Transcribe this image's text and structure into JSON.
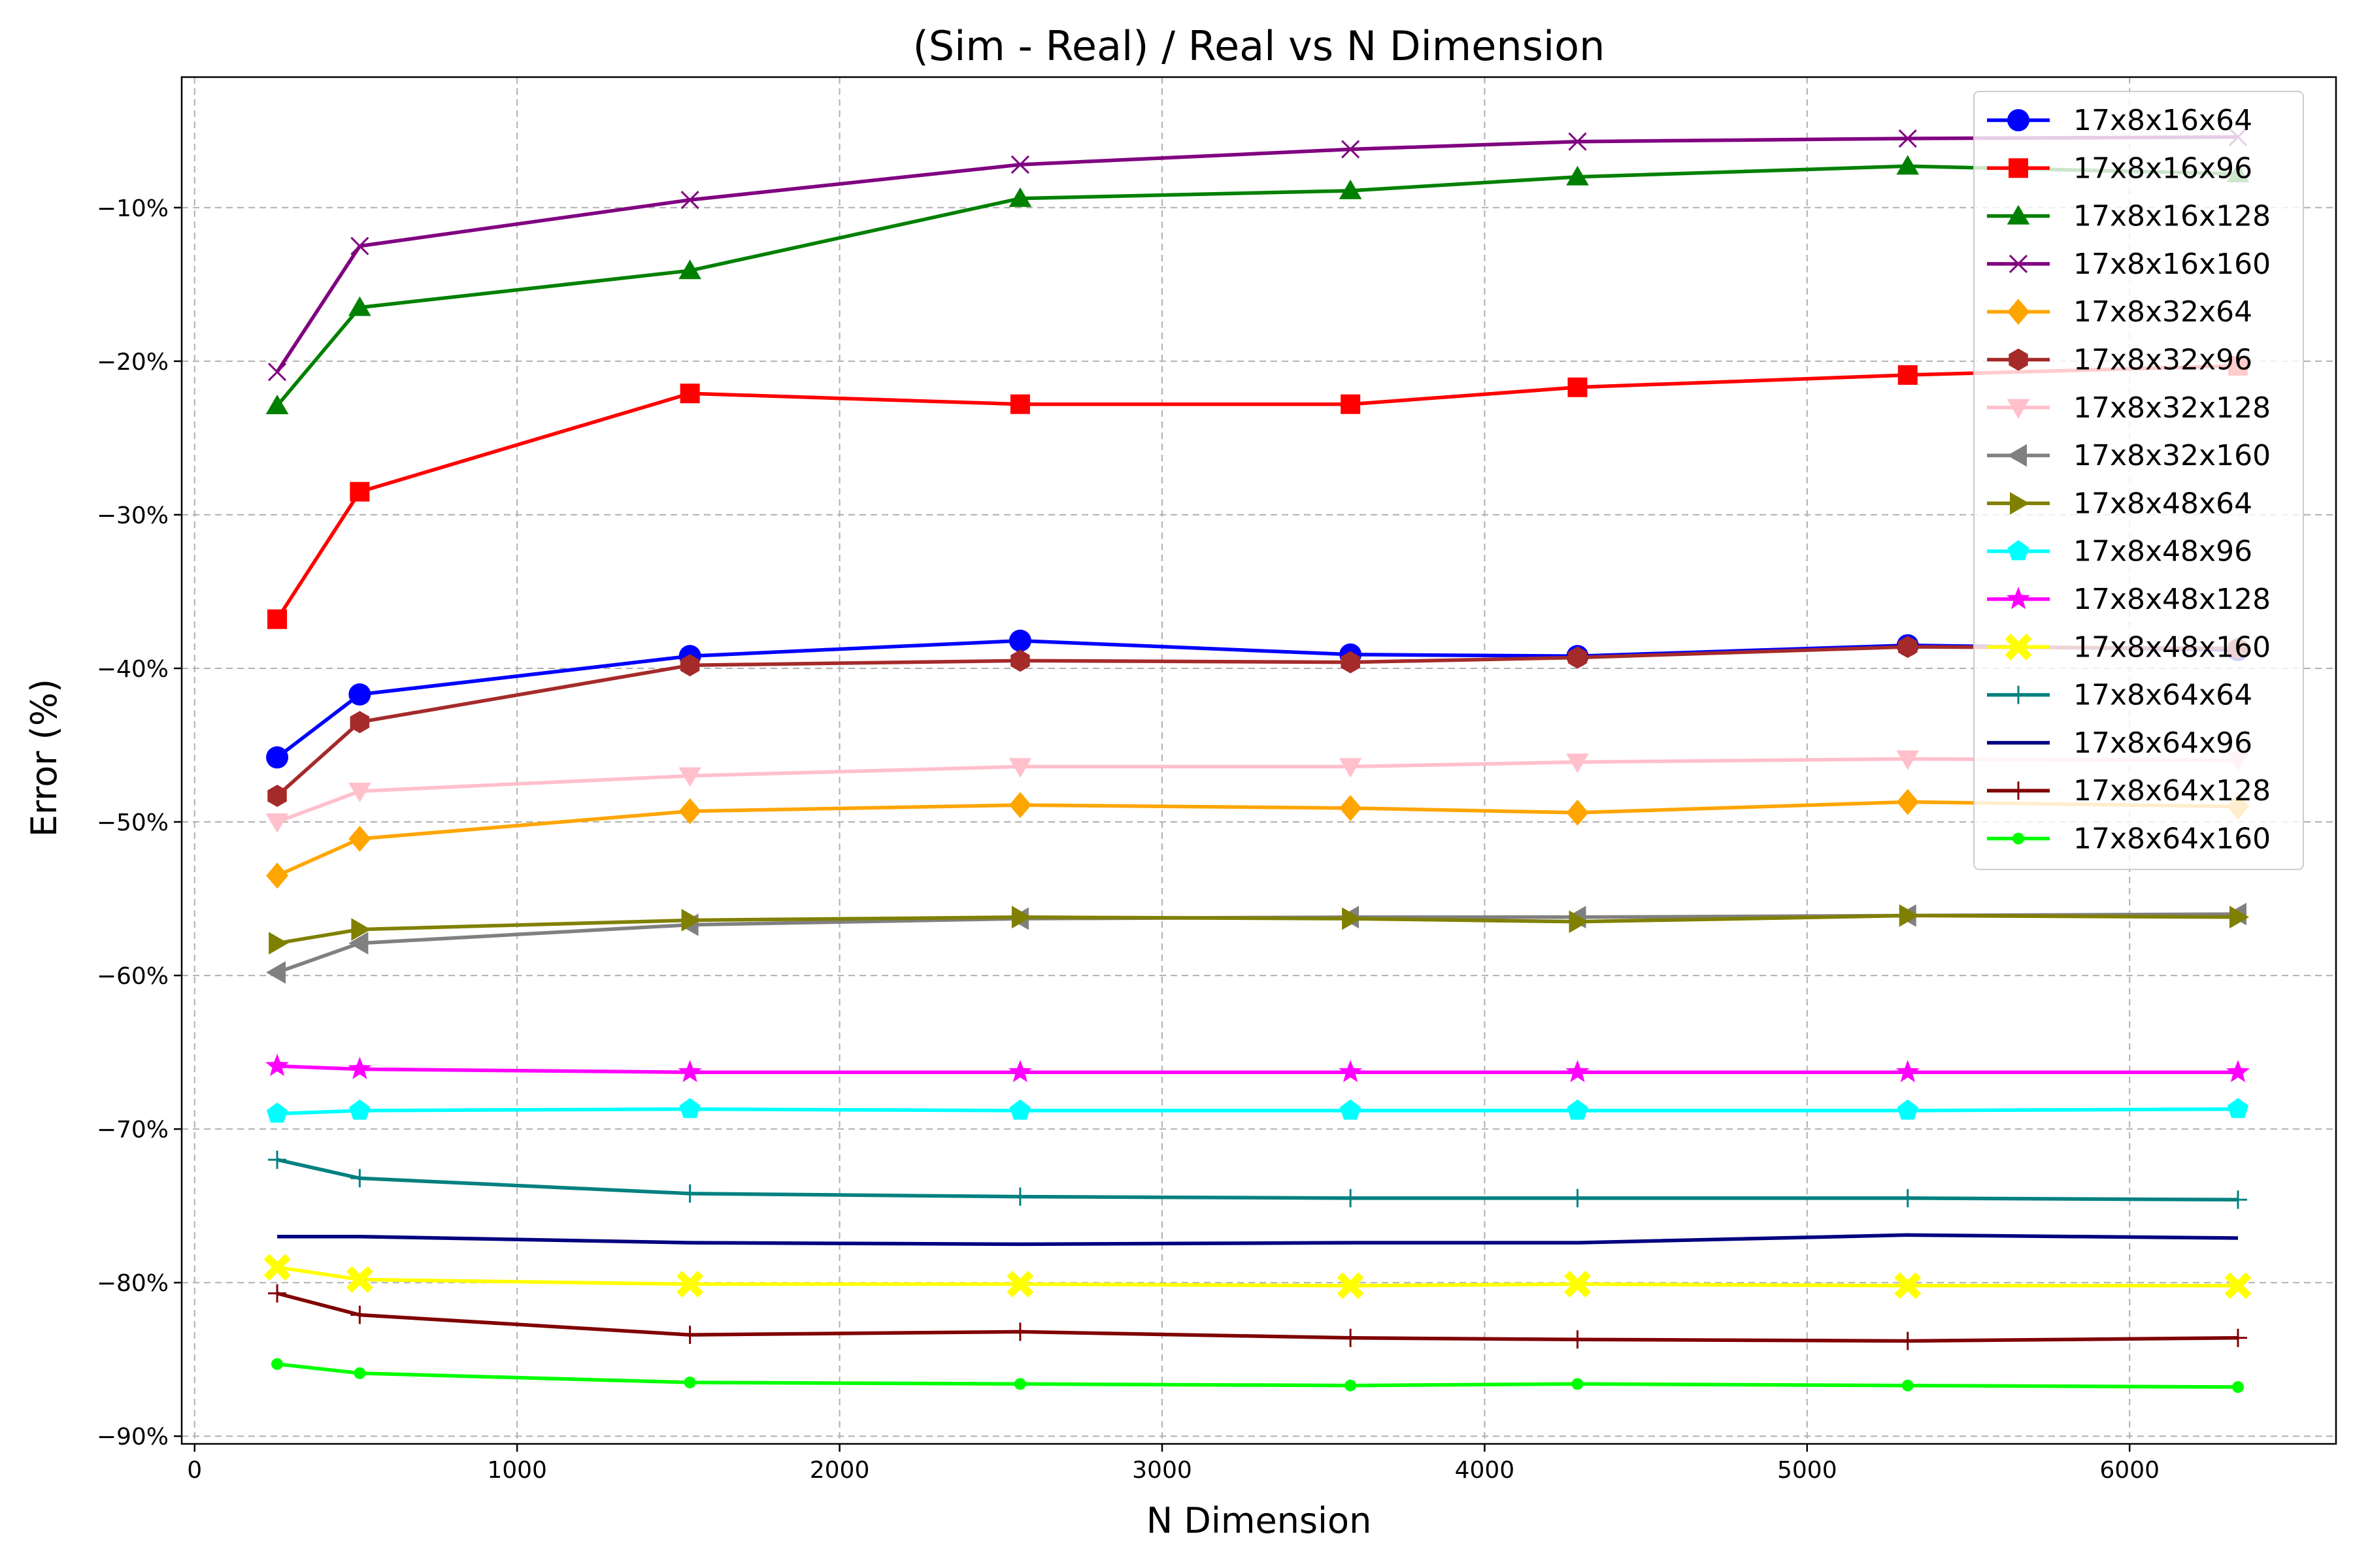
{
  "chart_data": {
    "type": "line",
    "title": "(Sim - Real) / Real vs N Dimension",
    "xlabel": "N Dimension",
    "ylabel": "Error (%)",
    "xlim": [
      -40,
      6640
    ],
    "ylim": [
      -90.5,
      -1.5
    ],
    "xticks": [
      0,
      1000,
      2000,
      3000,
      4000,
      5000,
      6000
    ],
    "yticks": [
      -90,
      -80,
      -70,
      -60,
      -50,
      -40,
      -30,
      -20,
      -10
    ],
    "ytick_labels": [
      "−90%",
      "−80%",
      "−70%",
      "−60%",
      "−50%",
      "−40%",
      "−30%",
      "−20%",
      "−10%"
    ],
    "grid": true,
    "legend_position": "top-right",
    "x": [
      256,
      512,
      1536,
      2560,
      3584,
      4288,
      5312,
      6336
    ],
    "series": [
      {
        "name": "17x8x16x64",
        "color": "#0000ff",
        "marker": "circle",
        "values": [
          -45.8,
          -41.7,
          -39.2,
          -38.2,
          -39.1,
          -39.2,
          -38.5,
          -38.8
        ]
      },
      {
        "name": "17x8x16x96",
        "color": "#ff0000",
        "marker": "square",
        "values": [
          -36.8,
          -28.5,
          -22.1,
          -22.8,
          -22.8,
          -21.7,
          -20.9,
          -20.3
        ]
      },
      {
        "name": "17x8x16x128",
        "color": "#008000",
        "marker": "triangle-up",
        "values": [
          -22.9,
          -16.5,
          -14.1,
          -9.4,
          -8.9,
          -8.0,
          -7.3,
          -7.8
        ]
      },
      {
        "name": "17x8x16x160",
        "color": "#800080",
        "marker": "x",
        "values": [
          -20.7,
          -12.5,
          -9.5,
          -7.2,
          -6.2,
          -5.7,
          -5.5,
          -5.4
        ]
      },
      {
        "name": "17x8x32x64",
        "color": "#ffa500",
        "marker": "diamond",
        "values": [
          -53.5,
          -51.1,
          -49.3,
          -48.9,
          -49.1,
          -49.4,
          -48.7,
          -49.0
        ]
      },
      {
        "name": "17x8x32x96",
        "color": "#a52a2a",
        "marker": "hexagon",
        "values": [
          -48.3,
          -43.5,
          -39.8,
          -39.5,
          -39.6,
          -39.3,
          -38.6,
          -38.7
        ]
      },
      {
        "name": "17x8x32x128",
        "color": "#ffc0cb",
        "marker": "triangle-down",
        "values": [
          -50.0,
          -48.0,
          -47.0,
          -46.4,
          -46.4,
          -46.1,
          -45.9,
          -46.0
        ]
      },
      {
        "name": "17x8x32x160",
        "color": "#808080",
        "marker": "triangle-left",
        "values": [
          -59.8,
          -57.9,
          -56.7,
          -56.3,
          -56.2,
          -56.2,
          -56.1,
          -56.0
        ]
      },
      {
        "name": "17x8x48x64",
        "color": "#808000",
        "marker": "triangle-right",
        "values": [
          -57.9,
          -57.0,
          -56.4,
          -56.2,
          -56.3,
          -56.5,
          -56.1,
          -56.2
        ]
      },
      {
        "name": "17x8x48x96",
        "color": "#00ffff",
        "marker": "pentagon",
        "values": [
          -69.0,
          -68.8,
          -68.7,
          -68.8,
          -68.8,
          -68.8,
          -68.8,
          -68.7
        ]
      },
      {
        "name": "17x8x48x128",
        "color": "#ff00ff",
        "marker": "star",
        "values": [
          -65.9,
          -66.1,
          -66.3,
          -66.3,
          -66.3,
          -66.3,
          -66.3,
          -66.3
        ]
      },
      {
        "name": "17x8x48x160",
        "color": "#ffff00",
        "marker": "x-filled",
        "values": [
          -79.0,
          -79.8,
          -80.1,
          -80.1,
          -80.2,
          -80.1,
          -80.2,
          -80.2
        ]
      },
      {
        "name": "17x8x64x64",
        "color": "#008080",
        "marker": "plus",
        "values": [
          -72.0,
          -73.2,
          -74.2,
          -74.4,
          -74.5,
          -74.5,
          -74.5,
          -74.6
        ]
      },
      {
        "name": "17x8x64x96",
        "color": "#000080",
        "marker": "none",
        "values": [
          -77.0,
          -77.0,
          -77.4,
          -77.5,
          -77.4,
          -77.4,
          -76.9,
          -77.1
        ]
      },
      {
        "name": "17x8x64x128",
        "color": "#800000",
        "marker": "plus",
        "values": [
          -80.7,
          -82.1,
          -83.4,
          -83.2,
          -83.6,
          -83.7,
          -83.8,
          -83.6
        ]
      },
      {
        "name": "17x8x64x160",
        "color": "#00ff00",
        "marker": "point",
        "values": [
          -85.3,
          -85.9,
          -86.5,
          -86.6,
          -86.7,
          -86.6,
          -86.7,
          -86.8
        ]
      }
    ]
  }
}
